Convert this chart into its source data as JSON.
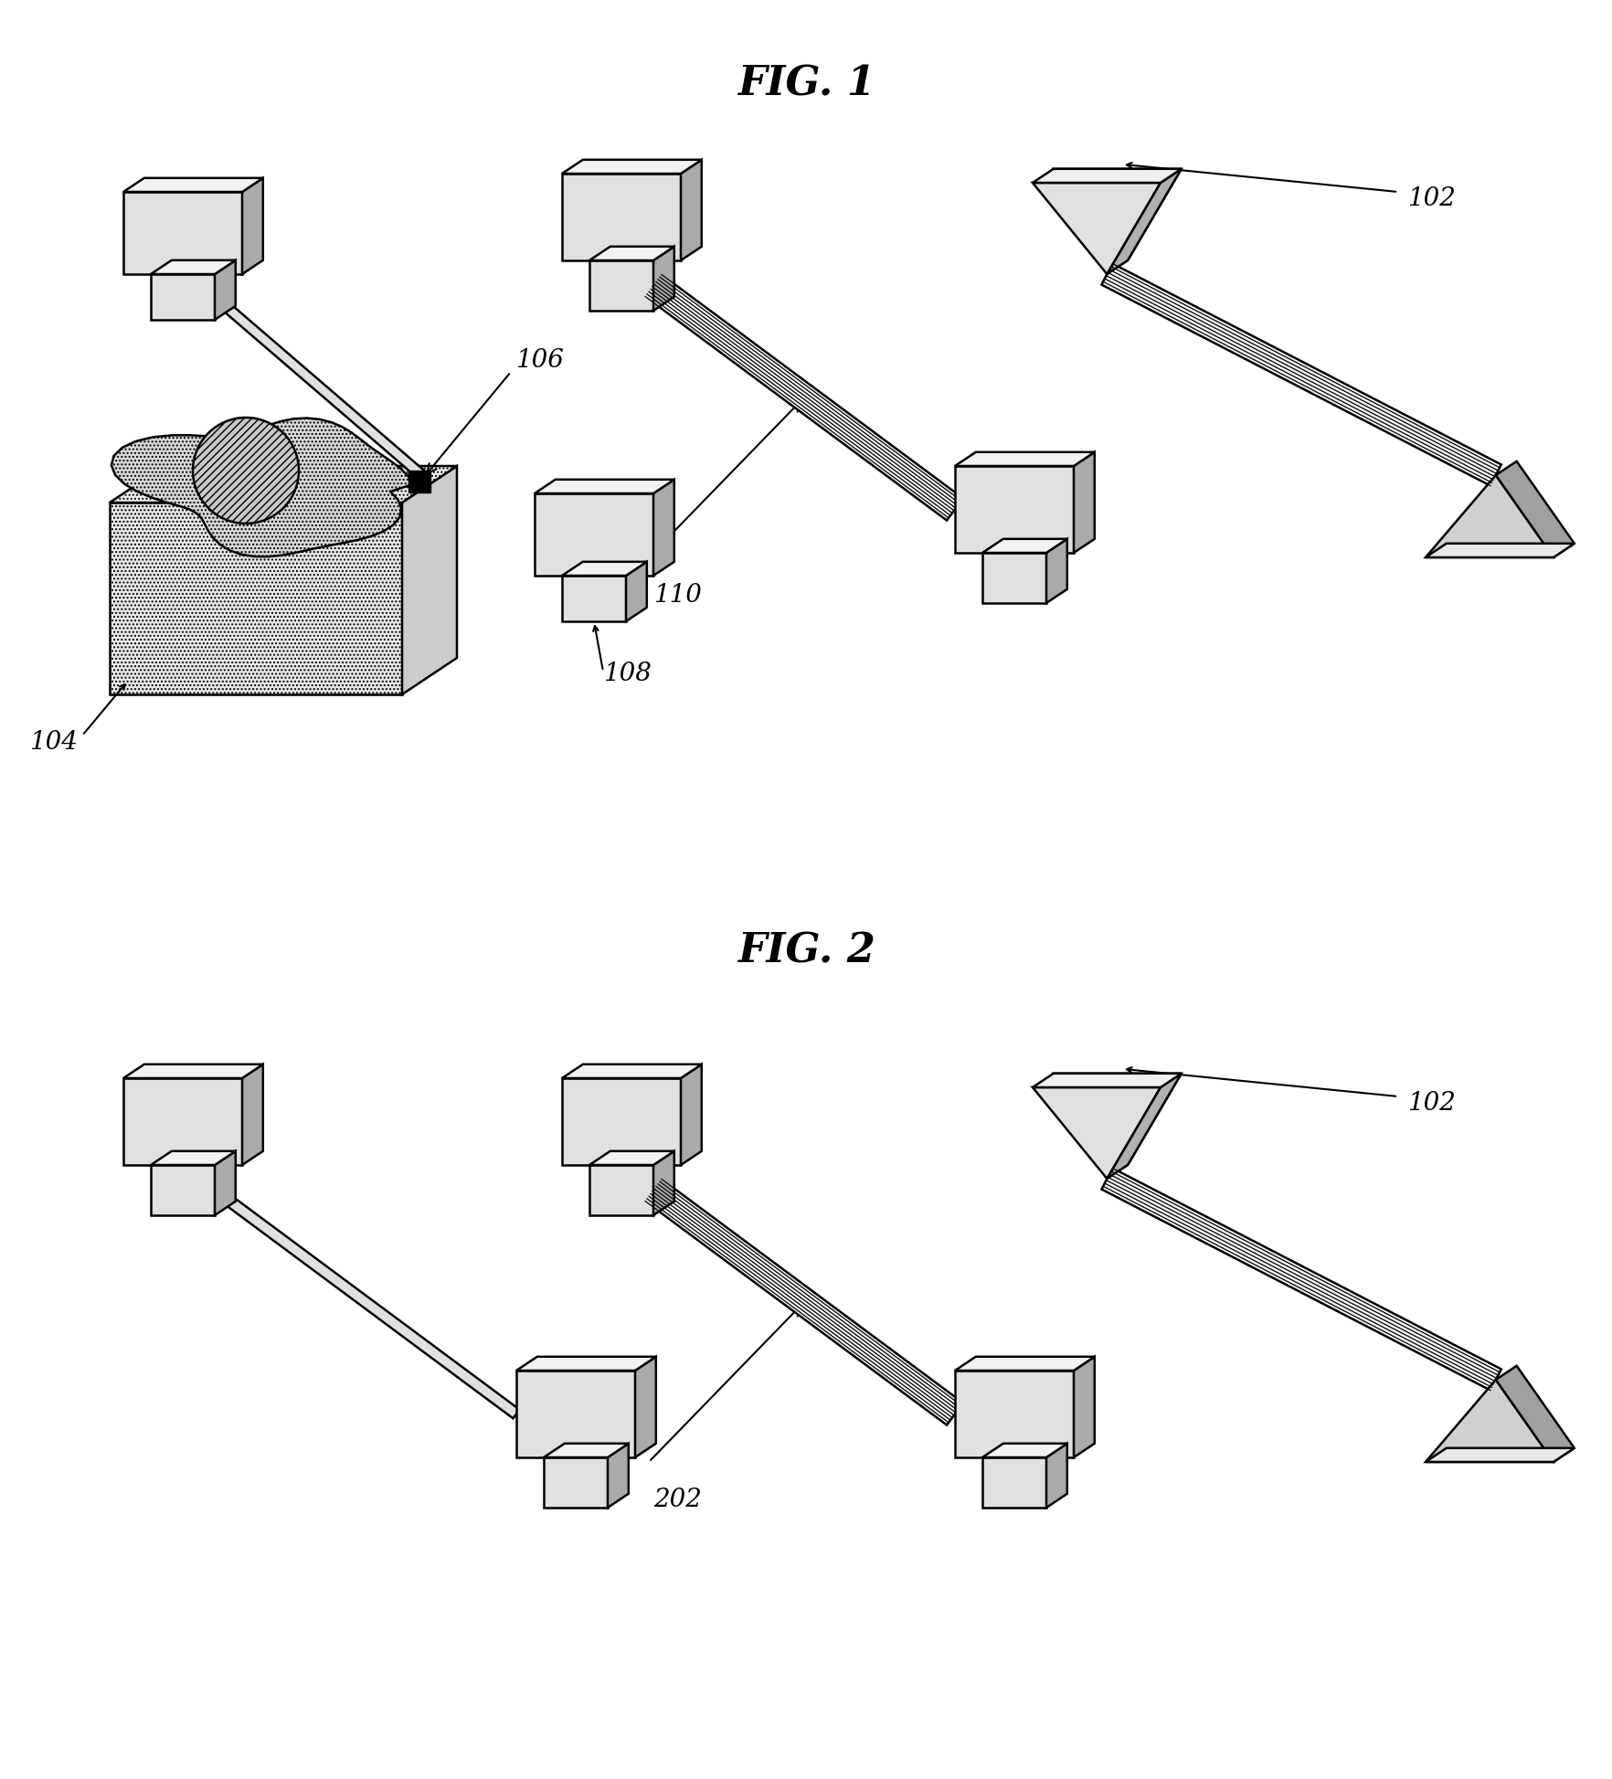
{
  "fig1_title": "FIG. 1",
  "fig2_title": "FIG. 2",
  "bg": "#ffffff",
  "label_102": "102",
  "label_104": "104",
  "label_106": "106",
  "label_108": "108",
  "label_110": "110",
  "label_202": "202",
  "title_fontsize": 32,
  "label_fontsize": 20,
  "fig_width": 17.65,
  "fig_height": 19.47,
  "lw": 1.8
}
